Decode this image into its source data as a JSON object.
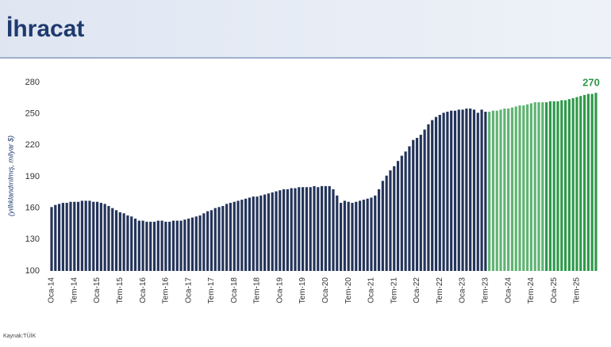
{
  "chart_data": {
    "type": "bar",
    "title": "İhracat",
    "y_label": "(yıllıklandırılmış, milyar $)",
    "source": "Kaynak:TÜİK",
    "categories": [
      "Oca-14",
      null,
      null,
      null,
      null,
      null,
      "Tem-14",
      null,
      null,
      null,
      null,
      null,
      "Oca-15",
      null,
      null,
      null,
      null,
      null,
      "Tem-15",
      null,
      null,
      null,
      null,
      null,
      "Oca-16",
      null,
      null,
      null,
      null,
      null,
      "Tem-16",
      null,
      null,
      null,
      null,
      null,
      "Oca-17",
      null,
      null,
      null,
      null,
      null,
      "Tem-17",
      null,
      null,
      null,
      null,
      null,
      "Oca-18",
      null,
      null,
      null,
      null,
      null,
      "Tem-18",
      null,
      null,
      null,
      null,
      null,
      "Oca-19",
      null,
      null,
      null,
      null,
      null,
      "Tem-19",
      null,
      null,
      null,
      null,
      null,
      "Oca-20",
      null,
      null,
      null,
      null,
      null,
      "Tem-20",
      null,
      null,
      null,
      null,
      null,
      "Oca-21",
      null,
      null,
      null,
      null,
      null,
      "Tem-21",
      null,
      null,
      null,
      null,
      null,
      "Oca-22",
      null,
      null,
      null,
      null,
      null,
      "Tem-22",
      null,
      null,
      null,
      null,
      null,
      "Oca-23",
      null,
      null,
      null,
      null,
      null,
      "Tem-23",
      null,
      null,
      null,
      null,
      null,
      "Oca-24",
      null,
      null,
      null,
      null,
      null,
      "Tem-24",
      null,
      null,
      null,
      null,
      null,
      "Oca-25",
      null,
      null,
      null,
      null,
      null,
      "Tem-25",
      null,
      null,
      null,
      null,
      null
    ],
    "values": [
      161,
      163,
      164,
      165,
      165,
      166,
      166,
      166,
      167,
      167,
      167,
      166,
      166,
      165,
      164,
      162,
      160,
      158,
      156,
      155,
      153,
      152,
      150,
      148,
      148,
      147,
      147,
      147,
      148,
      148,
      147,
      147,
      148,
      148,
      148,
      149,
      150,
      151,
      152,
      153,
      155,
      157,
      158,
      160,
      161,
      162,
      164,
      165,
      166,
      167,
      168,
      169,
      170,
      171,
      171,
      172,
      173,
      174,
      175,
      176,
      177,
      178,
      178,
      179,
      179,
      180,
      180,
      180,
      180,
      181,
      180,
      181,
      181,
      181,
      178,
      172,
      165,
      167,
      166,
      165,
      166,
      167,
      168,
      169,
      170,
      172,
      178,
      186,
      191,
      196,
      200,
      205,
      210,
      214,
      219,
      225,
      227,
      230,
      235,
      240,
      244,
      247,
      249,
      251,
      252,
      253,
      253,
      254,
      254,
      255,
      255,
      254,
      251,
      254,
      252,
      252,
      253,
      253,
      254,
      255,
      255,
      256,
      257,
      258,
      258,
      259,
      260,
      261,
      261,
      261,
      261,
      262,
      262,
      262,
      263,
      263,
      264,
      265,
      266,
      267,
      268,
      269,
      269,
      270
    ],
    "colors": [
      "#24345a",
      "#24345a",
      "#24345a",
      "#24345a",
      "#24345a",
      "#24345a",
      "#24345a",
      "#24345a",
      "#24345a",
      "#24345a",
      "#24345a",
      "#24345a",
      "#24345a",
      "#24345a",
      "#24345a",
      "#24345a",
      "#24345a",
      "#24345a",
      "#24345a",
      "#24345a",
      "#24345a",
      "#24345a",
      "#24345a",
      "#24345a",
      "#24345a",
      "#24345a",
      "#24345a",
      "#24345a",
      "#24345a",
      "#24345a",
      "#24345a",
      "#24345a",
      "#24345a",
      "#24345a",
      "#24345a",
      "#24345a",
      "#24345a",
      "#24345a",
      "#24345a",
      "#24345a",
      "#24345a",
      "#24345a",
      "#24345a",
      "#24345a",
      "#24345a",
      "#24345a",
      "#24345a",
      "#24345a",
      "#24345a",
      "#24345a",
      "#24345a",
      "#24345a",
      "#24345a",
      "#24345a",
      "#24345a",
      "#24345a",
      "#24345a",
      "#24345a",
      "#24345a",
      "#24345a",
      "#24345a",
      "#24345a",
      "#24345a",
      "#24345a",
      "#24345a",
      "#24345a",
      "#24345a",
      "#24345a",
      "#24345a",
      "#24345a",
      "#24345a",
      "#24345a",
      "#24345a",
      "#24345a",
      "#24345a",
      "#24345a",
      "#24345a",
      "#24345a",
      "#24345a",
      "#24345a",
      "#24345a",
      "#24345a",
      "#24345a",
      "#24345a",
      "#24345a",
      "#24345a",
      "#24345a",
      "#24345a",
      "#24345a",
      "#24345a",
      "#24345a",
      "#24345a",
      "#24345a",
      "#24345a",
      "#24345a",
      "#24345a",
      "#24345a",
      "#24345a",
      "#24345a",
      "#24345a",
      "#24345a",
      "#24345a",
      "#24345a",
      "#24345a",
      "#24345a",
      "#24345a",
      "#24345a",
      "#24345a",
      "#24345a",
      "#24345a",
      "#24345a",
      "#24345a",
      "#24345a",
      "#24345a",
      "#24345a",
      "#5fb372",
      "#5fb372",
      "#5fb372",
      "#5fb372",
      "#5fb372",
      "#5fb372",
      "#5fb372",
      "#5fb372",
      "#5fb372",
      "#5fb372",
      "#5fb372",
      "#5fb372",
      "#5fb372",
      "#5fb372",
      "#5fb372",
      "#2f9a4a",
      "#2f9a4a",
      "#2f9a4a",
      "#2f9a4a",
      "#2f9a4a",
      "#2f9a4a",
      "#2f9a4a",
      "#2f9a4a",
      "#2f9a4a",
      "#2f9a4a",
      "#2f9a4a",
      "#2f9a4a",
      "#2f9a4a",
      "#2f9a4a"
    ],
    "label_color": "#2f9a4a",
    "labeled_index": 143,
    "ylim": [
      100,
      280
    ],
    "yticks": [
      100,
      130,
      160,
      190,
      220,
      250,
      280
    ],
    "grid": false
  }
}
